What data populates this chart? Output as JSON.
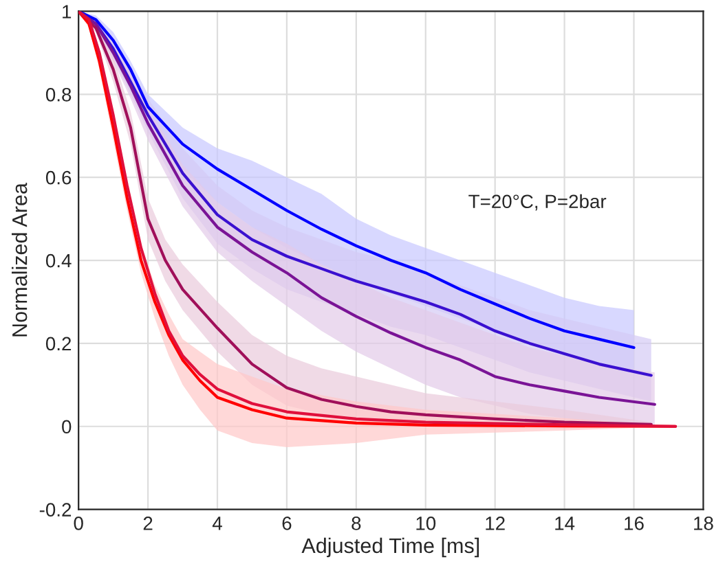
{
  "chart_data": {
    "type": "line",
    "xlabel": "Adjusted Time [ms]",
    "ylabel": "Normalized Area",
    "annotations": [
      "T=20°C, P=2bar"
    ],
    "xlim": [
      0,
      18
    ],
    "ylim": [
      -0.2,
      1
    ],
    "xticks": [
      0,
      2,
      4,
      6,
      8,
      10,
      12,
      14,
      16,
      18
    ],
    "yticks": [
      -0.2,
      0,
      0.2,
      0.4,
      0.6,
      0.8,
      1
    ],
    "grid": true,
    "legend": false,
    "line_style": "solid",
    "marker": "none",
    "series": [
      {
        "color": "#0000ff",
        "x": [
          0,
          0.5,
          1,
          1.5,
          2,
          3,
          4,
          5,
          6,
          7,
          8,
          9,
          10,
          11,
          12,
          13,
          14,
          15,
          16
        ],
        "values": [
          1,
          0.98,
          0.93,
          0.86,
          0.77,
          0.68,
          0.62,
          0.57,
          0.52,
          0.475,
          0.435,
          0.4,
          0.37,
          0.33,
          0.295,
          0.26,
          0.23,
          0.21,
          0.19
        ],
        "lower": [
          1,
          0.97,
          0.91,
          0.83,
          0.74,
          0.62,
          0.54,
          0.48,
          0.43,
          0.39,
          0.35,
          0.32,
          0.29,
          0.26,
          0.23,
          0.2,
          0.17,
          0.15,
          0.13
        ],
        "upper": [
          1,
          0.99,
          0.95,
          0.88,
          0.8,
          0.72,
          0.67,
          0.64,
          0.6,
          0.56,
          0.5,
          0.46,
          0.43,
          0.4,
          0.37,
          0.34,
          0.31,
          0.29,
          0.28
        ]
      },
      {
        "color": "#3a10d0",
        "x": [
          0,
          0.5,
          1,
          1.5,
          2,
          3,
          4,
          5,
          6,
          7,
          8,
          9,
          10,
          11,
          12,
          13,
          14,
          15,
          16.5
        ],
        "values": [
          1,
          0.97,
          0.91,
          0.83,
          0.75,
          0.61,
          0.51,
          0.45,
          0.41,
          0.38,
          0.35,
          0.325,
          0.3,
          0.27,
          0.23,
          0.2,
          0.175,
          0.15,
          0.123
        ],
        "lower": [
          1,
          0.96,
          0.89,
          0.8,
          0.71,
          0.55,
          0.44,
          0.38,
          0.33,
          0.3,
          0.27,
          0.24,
          0.22,
          0.19,
          0.16,
          0.13,
          0.11,
          0.09,
          0.06
        ],
        "upper": [
          1,
          0.98,
          0.93,
          0.86,
          0.79,
          0.67,
          0.58,
          0.52,
          0.48,
          0.45,
          0.42,
          0.4,
          0.37,
          0.34,
          0.31,
          0.28,
          0.26,
          0.24,
          0.21
        ]
      },
      {
        "color": "#7a1496",
        "x": [
          0,
          0.5,
          1,
          1.5,
          2,
          3,
          4,
          5,
          6,
          7,
          8,
          9,
          10,
          11,
          12,
          13,
          14,
          15,
          16.6
        ],
        "values": [
          1,
          0.97,
          0.9,
          0.82,
          0.73,
          0.58,
          0.48,
          0.42,
          0.37,
          0.31,
          0.265,
          0.225,
          0.19,
          0.16,
          0.12,
          0.1,
          0.085,
          0.07,
          0.053
        ],
        "lower": [
          1,
          0.96,
          0.88,
          0.79,
          0.69,
          0.53,
          0.42,
          0.35,
          0.29,
          0.23,
          0.18,
          0.14,
          0.1,
          0.07,
          0.05,
          0.03,
          0.02,
          0.01,
          0
        ],
        "upper": [
          1,
          0.98,
          0.92,
          0.85,
          0.77,
          0.63,
          0.54,
          0.48,
          0.44,
          0.39,
          0.35,
          0.31,
          0.28,
          0.25,
          0.22,
          0.19,
          0.17,
          0.15,
          0.13
        ]
      },
      {
        "color": "#a0105a",
        "x": [
          0,
          0.5,
          1,
          1.5,
          2,
          2.5,
          3,
          4,
          5,
          6,
          7,
          8,
          9,
          10,
          12,
          14,
          16.5
        ],
        "values": [
          1,
          0.96,
          0.86,
          0.72,
          0.5,
          0.4,
          0.33,
          0.237,
          0.15,
          0.093,
          0.065,
          0.048,
          0.035,
          0.028,
          0.018,
          0.01,
          0.005
        ],
        "lower": [
          1,
          0.95,
          0.83,
          0.68,
          0.45,
          0.35,
          0.28,
          0.18,
          0.1,
          0.05,
          0.03,
          0.015,
          0.005,
          0,
          -0.005,
          -0.005,
          0
        ],
        "upper": [
          1,
          0.97,
          0.89,
          0.76,
          0.55,
          0.45,
          0.39,
          0.3,
          0.22,
          0.17,
          0.14,
          0.12,
          0.1,
          0.08,
          0.06,
          0.04,
          0.01
        ]
      },
      {
        "color": "#ff0000",
        "x": [
          0,
          0.3,
          0.6,
          1,
          1.4,
          1.8,
          2.2,
          2.6,
          3,
          3.5,
          4,
          5,
          6,
          8,
          10,
          14,
          17.2
        ],
        "values": [
          1,
          0.97,
          0.88,
          0.72,
          0.55,
          0.4,
          0.3,
          0.22,
          0.16,
          0.11,
          0.07,
          0.04,
          0.02,
          0.008,
          0.003,
          0.001,
          0
        ],
        "lower": [
          1,
          0.96,
          0.86,
          0.69,
          0.52,
          0.37,
          0.26,
          0.17,
          0.1,
          0.04,
          -0.01,
          -0.04,
          -0.05,
          -0.04,
          -0.02,
          -0.01,
          0
        ],
        "upper": [
          1,
          0.98,
          0.9,
          0.76,
          0.59,
          0.44,
          0.34,
          0.27,
          0.21,
          0.18,
          0.15,
          0.12,
          0.09,
          0.06,
          0.04,
          0.02,
          0
        ]
      },
      {
        "color": "#e0103c",
        "x": [
          0,
          0.3,
          0.6,
          1,
          1.4,
          1.8,
          2.2,
          2.6,
          3,
          3.5,
          4,
          5,
          6,
          8,
          10,
          14,
          17.2
        ],
        "values": [
          1,
          0.98,
          0.9,
          0.75,
          0.58,
          0.43,
          0.32,
          0.23,
          0.17,
          0.125,
          0.09,
          0.055,
          0.035,
          0.018,
          0.01,
          0.004,
          0
        ]
      }
    ]
  }
}
